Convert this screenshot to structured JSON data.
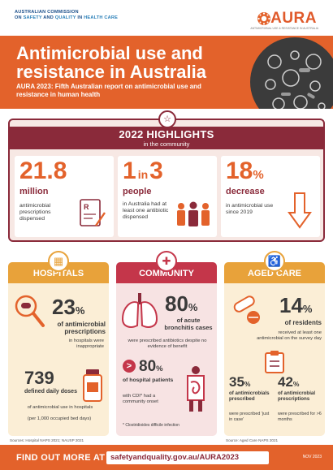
{
  "header": {
    "commission_line1": "AUSTRALIAN COMMISSION",
    "commission_on": "ON",
    "commission_safety": "SAFETY",
    "commission_and": "AND",
    "commission_quality": "QUALITY",
    "commission_in": "IN",
    "commission_health": "HEALTH CARE",
    "logo_word": "AURA",
    "logo_sub": "ANTIMICROBIAL USE & RESISTANCE IN AUSTRALIA"
  },
  "banner": {
    "title": "Antimicrobial use and resistance in Australia",
    "subtitle": "AURA 2023: Fifth Australian report on antimicrobial use and resistance in human health"
  },
  "highlights": {
    "title": "2022 HIGHLIGHTS",
    "subtitle": "in the community",
    "stat1": {
      "value": "21.8",
      "unit": "million",
      "desc": "antimicrobial prescriptions dispensed"
    },
    "stat2": {
      "value_a": "1",
      "value_in": "in",
      "value_b": "3",
      "unit": "people",
      "desc": "in Australia had at least one antibiotic dispensed"
    },
    "stat3": {
      "value": "18",
      "pct": "%",
      "unit": "decrease",
      "desc": "in antimicrobial use since 2019"
    }
  },
  "hospitals": {
    "title": "HOSPITALS",
    "pct1": "23",
    "pct_sign": "%",
    "label1": "of antimicrobial prescriptions",
    "sub1": "in hospitals were inappropriate",
    "num2": "739",
    "label2": "defined daily doses",
    "sub2a": "of antimicrobial use in hospitals",
    "sub2b": "(per 1,000 occupied bed days)",
    "source": "Sources: Hospital NAPS 2021; NAUSP 2021"
  },
  "community": {
    "title": "COMMUNITY",
    "pct1": "80",
    "pct_sign": "%",
    "label1": "of acute bronchitis cases",
    "sub1": "were prescribed antibiotics despite no evidence of benefit",
    "gt": ">",
    "pct2": "80",
    "pct2_sign": "%",
    "label2": "of hospital patients",
    "sub2": "with CDI* had a community onset",
    "footnote": "* Clostridioides difficile infection"
  },
  "aged_care": {
    "title": "AGED CARE",
    "pct1": "14",
    "pct_sign": "%",
    "label1": "of residents",
    "sub1": "received at least one antimicrobial on the survey day",
    "pct2": "35",
    "pct2_sign": "%",
    "label2": "of antimicrobials prescribed",
    "sub2": "were prescribed 'just in case'",
    "pct3": "42",
    "pct3_sign": "%",
    "label3": "of antimicrobial prescriptions",
    "sub3": "were prescribed for >6 months",
    "source": "Source: Aged Care NAPS 2021"
  },
  "footer": {
    "label": "FIND OUT MORE AT",
    "url": "safetyandquality.gov.au/AURA2023",
    "date": "NOV 2023"
  },
  "colors": {
    "orange": "#e3622b",
    "maroon": "#8a2a3a",
    "hospitals": "#e8a23a",
    "community": "#c4364a",
    "aged_care": "#e8a23a"
  }
}
